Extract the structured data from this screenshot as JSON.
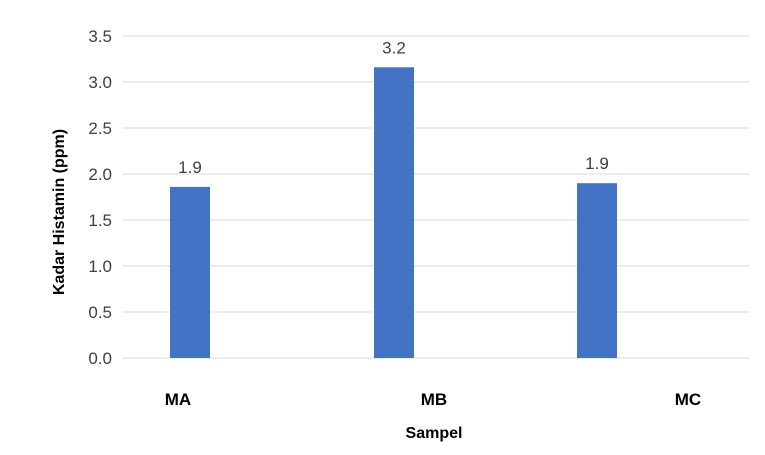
{
  "chart_data": {
    "type": "bar",
    "categories": [
      "MA",
      "MB",
      "MC"
    ],
    "values": [
      1.86,
      3.16,
      1.9
    ],
    "data_labels": [
      "1.9",
      "3.2",
      "1.9"
    ],
    "xlabel": "Sampel",
    "ylabel": "Kadar Histamin (ppm)",
    "ylim": [
      0,
      3.5
    ],
    "yticks": [
      "0.0",
      "0.5",
      "1.0",
      "1.5",
      "2.0",
      "2.5",
      "3.0",
      "3.5"
    ],
    "ytick_values": [
      0,
      0.5,
      1.0,
      1.5,
      2.0,
      2.5,
      3.0,
      3.5
    ],
    "grid": true,
    "legend": "none",
    "bar_color": "#4472C4",
    "grid_color": "#D9D9D9"
  }
}
